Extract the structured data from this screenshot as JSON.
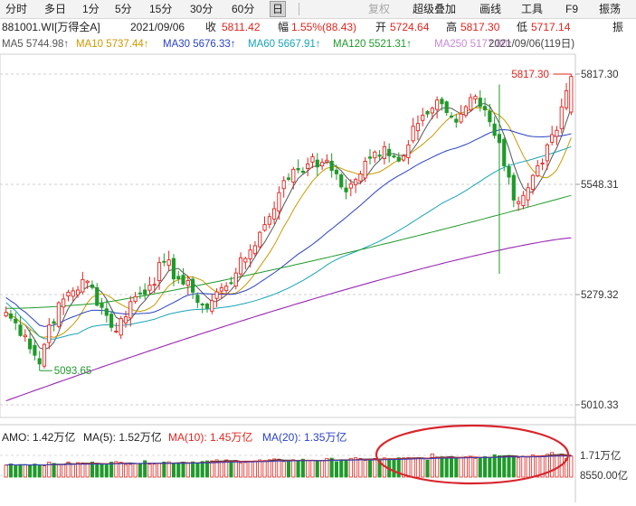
{
  "toolbar": {
    "items": [
      "分时",
      "多日",
      "1分",
      "5分",
      "15分",
      "30分",
      "60分",
      "日",
      "复权",
      "超级叠加",
      "画线",
      "工具",
      "F9",
      "振荡"
    ],
    "active": "日"
  },
  "info": {
    "code": "881001.WI[万得全A]",
    "date": "2021/09/06",
    "close_label": "收",
    "close": "5811.42",
    "change_label": "幅",
    "change": "1.55%(88.43)",
    "open_label": "开",
    "open": "5724.64",
    "high_label": "高",
    "high": "5817.30",
    "low_label": "低",
    "low": "5717.14",
    "amp_label": "振"
  },
  "ma": {
    "ma5": "MA5 5744.98↑",
    "ma10": "MA10 5737.44↑",
    "ma30": "MA30 5676.33↑",
    "ma60": "MA60 5667.91↑",
    "ma120": "MA120 5521.31↑",
    "ma250": "MA250 5177.80↑",
    "range": "2021/09/06(119日)",
    "colors": {
      "ma5": "#555555",
      "ma10": "#c99a00",
      "ma30": "#2a42c6",
      "ma60": "#1aa3b8",
      "ma120": "#1f9a2a",
      "ma250": "#9a28b4"
    }
  },
  "volume_info": {
    "amo": "AMO: 1.42万亿",
    "ma5": "MA(5): 1.52万亿",
    "ma10": "MA(10): 1.45万亿",
    "ma20": "MA(20): 1.35万亿"
  },
  "chart_data": {
    "type": "candlestick",
    "y_axis_labels": [
      "5817.30",
      "5548.31",
      "5279.32",
      "5010.33"
    ],
    "ylim": [
      5010.33,
      5817.3
    ],
    "volume_axis_labels": [
      "1.71万亿",
      "8550.00亿"
    ],
    "volume_ylim": [
      0,
      1.71
    ],
    "annotations": {
      "high": "5817.30",
      "low": "5093.65"
    },
    "colors": {
      "up": "#e0251f",
      "down": "#1f9a2a"
    },
    "key_points": [
      {
        "i": 0,
        "c": 5236
      },
      {
        "i": 4,
        "c": 5180
      },
      {
        "i": 7,
        "c": 5110
      },
      {
        "i": 9,
        "c": 5205
      },
      {
        "i": 13,
        "c": 5285
      },
      {
        "i": 17,
        "c": 5312
      },
      {
        "i": 20,
        "c": 5248
      },
      {
        "i": 23,
        "c": 5190
      },
      {
        "i": 26,
        "c": 5262
      },
      {
        "i": 30,
        "c": 5302
      },
      {
        "i": 33,
        "c": 5360
      },
      {
        "i": 36,
        "c": 5318
      },
      {
        "i": 39,
        "c": 5285
      },
      {
        "i": 42,
        "c": 5246
      },
      {
        "i": 45,
        "c": 5296
      },
      {
        "i": 48,
        "c": 5332
      },
      {
        "i": 51,
        "c": 5388
      },
      {
        "i": 54,
        "c": 5450
      },
      {
        "i": 57,
        "c": 5528
      },
      {
        "i": 60,
        "c": 5585
      },
      {
        "i": 63,
        "c": 5598
      },
      {
        "i": 66,
        "c": 5602
      },
      {
        "i": 69,
        "c": 5574
      },
      {
        "i": 71,
        "c": 5530
      },
      {
        "i": 73,
        "c": 5560
      },
      {
        "i": 76,
        "c": 5612
      },
      {
        "i": 79,
        "c": 5640
      },
      {
        "i": 82,
        "c": 5605
      },
      {
        "i": 85,
        "c": 5690
      },
      {
        "i": 88,
        "c": 5720
      },
      {
        "i": 91,
        "c": 5745
      },
      {
        "i": 94,
        "c": 5700
      },
      {
        "i": 97,
        "c": 5760
      },
      {
        "i": 100,
        "c": 5730
      },
      {
        "i": 103,
        "c": 5650
      },
      {
        "i": 106,
        "c": 5510
      },
      {
        "i": 109,
        "c": 5540
      },
      {
        "i": 112,
        "c": 5600
      },
      {
        "i": 115,
        "c": 5680
      },
      {
        "i": 118,
        "c": 5811
      }
    ],
    "special": [
      {
        "i": 7,
        "l": 5093.65
      },
      {
        "i": 103,
        "l": 5330,
        "h": 5792
      },
      {
        "i": 118,
        "o": 5724.64,
        "h": 5817.3,
        "l": 5717.14,
        "c": 5811.42
      }
    ]
  }
}
